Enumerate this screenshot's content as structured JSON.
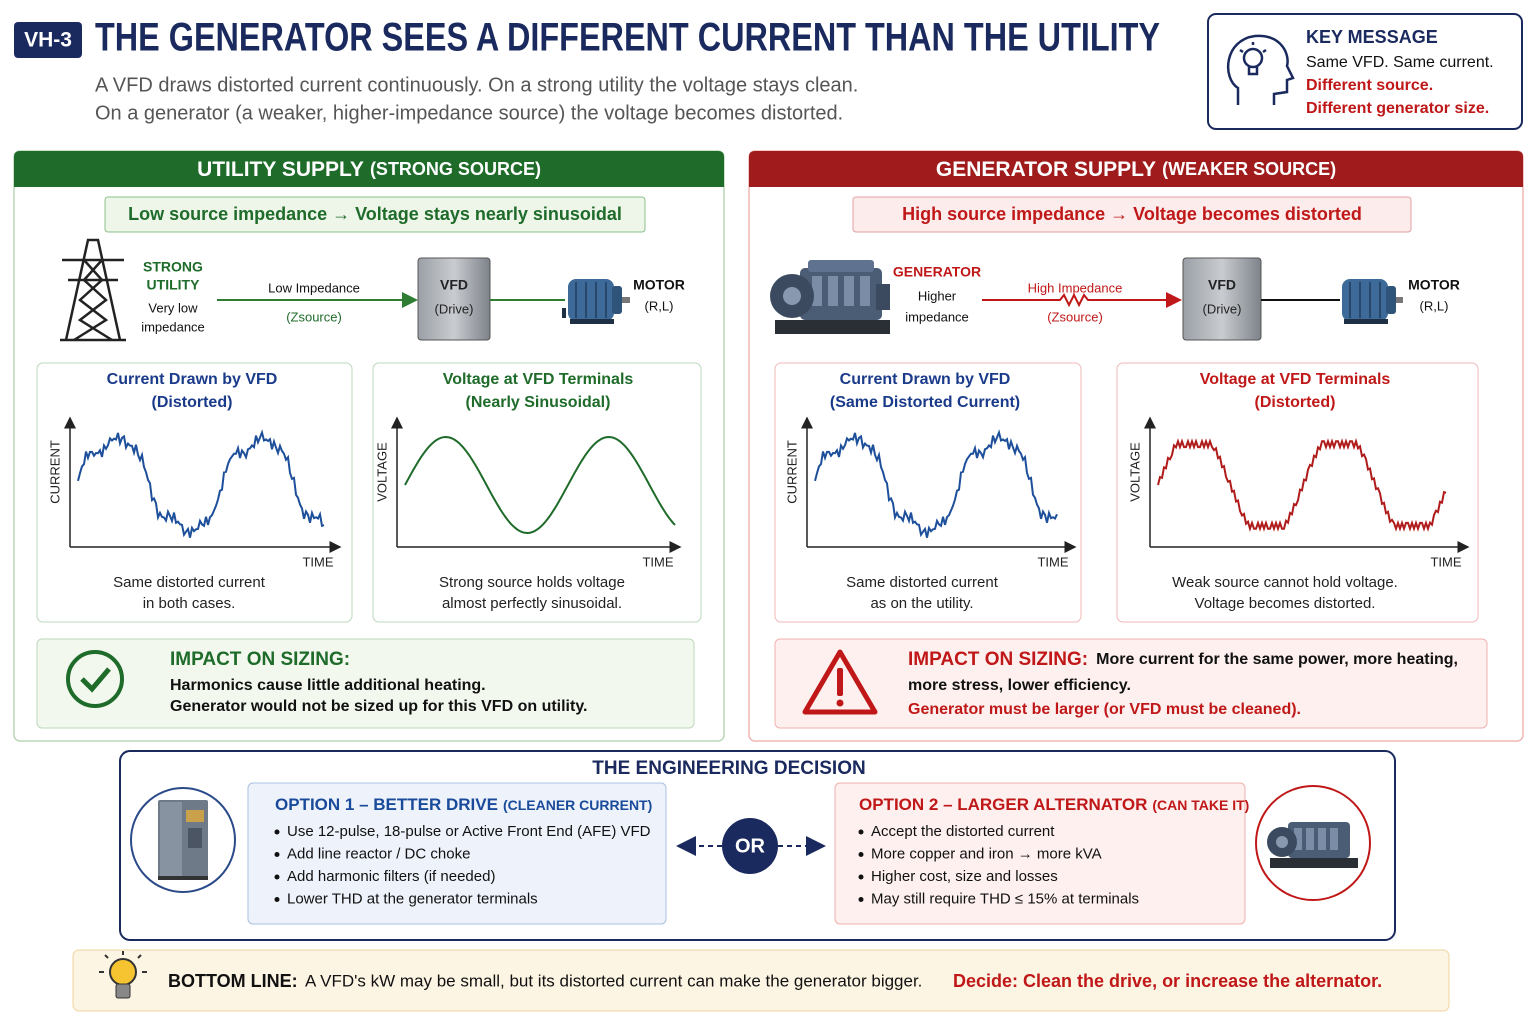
{
  "header": {
    "badge": "VH-3",
    "title": "THE GENERATOR SEES A DIFFERENT CURRENT THAN THE UTILITY",
    "subtitle": [
      "A VFD draws distorted current continuously. On a strong utility the voltage stays clean.",
      "On a generator (a weaker, higher-impedance source) the voltage becomes distorted."
    ]
  },
  "key_message": {
    "title": "KEY MESSAGE",
    "lines": [
      "Same VFD. Same current.",
      "Different source.",
      "Different generator size."
    ]
  },
  "utility": {
    "title": "UTILITY SUPPLY",
    "title_note": "(STRONG SOURCE)",
    "banner": "Low source impedance → Voltage stays nearly sinusoidal",
    "source": [
      "STRONG",
      "UTILITY"
    ],
    "source_note": [
      "Very low",
      "impedance"
    ],
    "link": "Low Impedance",
    "link_note": "(Zsource)",
    "vfd": "VFD",
    "vfd_note": "(Drive)",
    "motor": "MOTOR",
    "motor_note": "(R,L)",
    "charts": [
      {
        "title": "Current Drawn by VFD",
        "subtitle": "(Distorted)",
        "y_label": "CURRENT",
        "x_label": "TIME",
        "caption": [
          "Same distorted current",
          "in both cases."
        ]
      },
      {
        "title": "Voltage at VFD Terminals",
        "subtitle": "(Nearly Sinusoidal)",
        "y_label": "VOLTAGE",
        "x_label": "TIME",
        "caption": [
          "Strong source holds voltage",
          "almost perfectly sinusoidal."
        ]
      }
    ],
    "impact": {
      "title": "IMPACT ON SIZING:",
      "lines": [
        "Harmonics cause little additional heating.",
        "Generator would not be sized up for this VFD on utility."
      ]
    }
  },
  "generator": {
    "title": "GENERATOR SUPPLY",
    "title_note": "(WEAKER SOURCE)",
    "banner": "High source impedance → Voltage becomes distorted",
    "source": [
      "GENERATOR"
    ],
    "source_note": [
      "Higher",
      "impedance"
    ],
    "link": "High Impedance",
    "link_note": "(Zsource)",
    "vfd": "VFD",
    "vfd_note": "(Drive)",
    "motor": "MOTOR",
    "motor_note": "(R,L)",
    "charts": [
      {
        "title": "Current Drawn by VFD",
        "subtitle": "(Same Distorted Current)",
        "y_label": "CURRENT",
        "x_label": "TIME",
        "caption": [
          "Same distorted current",
          "as on the utility."
        ]
      },
      {
        "title": "Voltage at VFD Terminals",
        "subtitle": "(Distorted)",
        "y_label": "VOLTAGE",
        "x_label": "TIME",
        "caption": [
          "Weak source cannot hold voltage.",
          "Voltage becomes distorted."
        ]
      }
    ],
    "impact": {
      "title": "IMPACT ON SIZING:",
      "lines": [
        "More current for the same power, more heating,",
        "more stress, lower efficiency."
      ],
      "conclusion": "Generator must be larger (or VFD must be cleaned)."
    }
  },
  "decision": {
    "title": "THE ENGINEERING DECISION",
    "or": "OR",
    "options": [
      {
        "title": "OPTION 1 – BETTER DRIVE",
        "title_note": "(CLEANER CURRENT)",
        "bullets": [
          "Use 12-pulse, 18-pulse or Active Front End (AFE) VFD",
          "Add line reactor / DC choke",
          "Add harmonic filters (if needed)",
          "Lower THD at the generator terminals"
        ]
      },
      {
        "title": "OPTION 2 – LARGER ALTERNATOR",
        "title_note": "(CAN TAKE IT)",
        "bullets": [
          "Accept the distorted current",
          "More copper and iron → more kVA",
          "Higher cost, size and losses",
          "May still require THD ≤ 15% at terminals"
        ]
      }
    ]
  },
  "bottom_line": {
    "label": "BOTTOM LINE:",
    "text": "A VFD's kW may be small, but its distorted current can make the generator bigger.",
    "decision": "Decide: Clean the drive, or increase the alternator."
  }
}
